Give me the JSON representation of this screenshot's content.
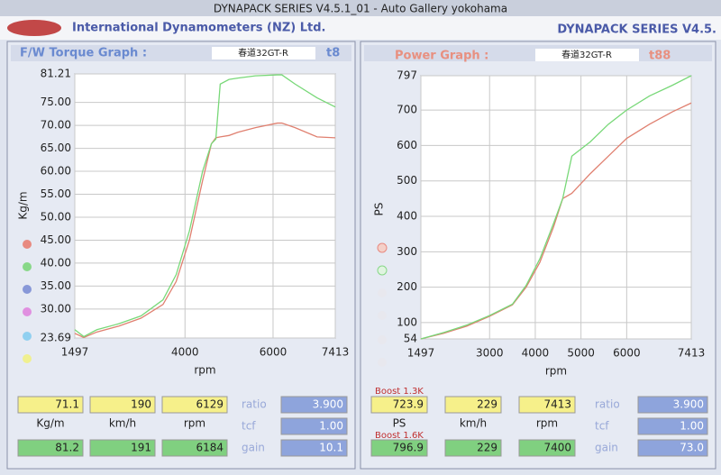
{
  "window": {
    "title": "DYNAPACK SERIES V4.5.1_01  - Auto Gallery yokohama"
  },
  "header": {
    "company": "International Dynamometers (NZ) Ltd.",
    "product": "DYNAPACK SERIES V4.5."
  },
  "chart_data": [
    {
      "type": "line",
      "title": "F/W Torque Graph  :",
      "name": "春道32GT-R",
      "run": "t8",
      "x_label": "rpm",
      "y_label": "Kg/m",
      "x": [
        1497,
        1700,
        2000,
        2500,
        3000,
        3500,
        3800,
        4100,
        4400,
        4600,
        4700,
        4800,
        5000,
        5200,
        5600,
        6100,
        6200,
        6500,
        7000,
        7413
      ],
      "series": [
        {
          "color": "#e08070",
          "values": [
            24.7,
            23.8,
            25,
            26.3,
            28,
            31,
            36,
            45,
            58,
            66,
            67.3,
            67.5,
            67.8,
            68.5,
            69.5,
            70.5,
            70.5,
            69.5,
            67.5,
            67.3
          ]
        },
        {
          "color": "#78d878",
          "values": [
            25.5,
            24,
            25.5,
            26.8,
            28.5,
            32,
            37.5,
            47,
            60,
            66,
            67,
            79,
            80,
            80.3,
            80.8,
            81,
            81,
            79,
            76,
            74
          ]
        }
      ],
      "xlim": [
        1497,
        7413
      ],
      "xticks": [
        1497,
        4000,
        6000,
        7413
      ],
      "ylim": [
        23.69,
        81.21
      ],
      "yticks": [
        81.21,
        {
          "value": 75,
          "label": "75.00"
        },
        {
          "value": 70,
          "label": "70.00"
        },
        {
          "value": 65,
          "label": "65.00"
        },
        {
          "value": 60,
          "label": "60.00"
        },
        {
          "value": 55,
          "label": "55.00"
        },
        {
          "value": 50,
          "label": "50.00"
        },
        {
          "value": 45,
          "label": "45.00"
        },
        {
          "value": 40,
          "label": "40.00"
        },
        {
          "value": 35,
          "label": "35.00"
        },
        {
          "value": 30,
          "label": "30.00"
        },
        23.69
      ],
      "grid": true
    },
    {
      "type": "line",
      "title": "Power Graph  :",
      "name": "春道32GT-R",
      "run": "t88",
      "x_label": "rpm",
      "y_label": "PS",
      "x": [
        1497,
        2000,
        2500,
        3000,
        3500,
        3800,
        4100,
        4400,
        4600,
        4800,
        5200,
        5600,
        6000,
        6500,
        7000,
        7413
      ],
      "series": [
        {
          "color": "#e08070",
          "values": [
            54,
            70,
            90,
            118,
            150,
            200,
            270,
            370,
            450,
            465,
            520,
            570,
            620,
            660,
            695,
            720
          ]
        },
        {
          "color": "#78d878",
          "values": [
            54,
            72,
            93,
            120,
            152,
            205,
            280,
            380,
            450,
            570,
            610,
            660,
            700,
            740,
            770,
            797
          ]
        }
      ],
      "xlim": [
        1497,
        7413
      ],
      "xticks": [
        1497,
        3000,
        4000,
        5000,
        6000,
        7413
      ],
      "ylim": [
        54,
        797
      ],
      "yticks": [
        797,
        700,
        600,
        500,
        400,
        300,
        200,
        100,
        54
      ],
      "grid": true
    }
  ],
  "readouts": [
    {
      "current": [
        "71.1",
        "190",
        "6129"
      ],
      "units": [
        "Kg/m",
        "km/h",
        "rpm"
      ],
      "max": [
        "81.2",
        "191",
        "6184"
      ],
      "params": [
        {
          "name": "ratio",
          "value": "3.900"
        },
        {
          "name": "tcf",
          "value": "1.00"
        },
        {
          "name": "gain",
          "value": "10.1"
        }
      ]
    },
    {
      "current_boost": "Boost 1.3K",
      "max_boost": "Boost 1.6K",
      "current": [
        "723.9",
        "229",
        "7413"
      ],
      "units": [
        "PS",
        "km/h",
        "rpm"
      ],
      "max": [
        "796.9",
        "229",
        "7400"
      ],
      "params": [
        {
          "name": "ratio",
          "value": "3.900"
        },
        {
          "name": "tcf",
          "value": "1.00"
        },
        {
          "name": "gain",
          "value": "73.0"
        }
      ]
    }
  ]
}
